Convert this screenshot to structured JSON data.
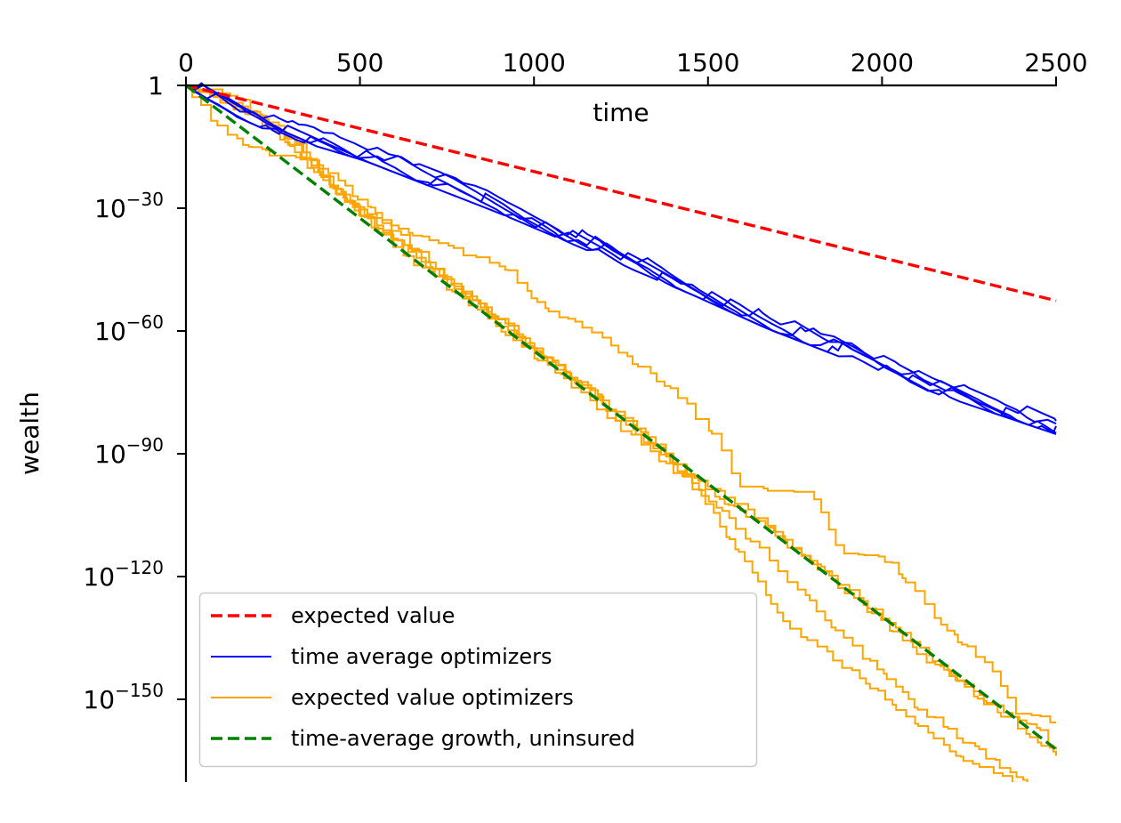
{
  "chart_data": {
    "type": "line",
    "title": "",
    "xlabel": "time",
    "ylabel": "wealth",
    "xscale": "linear",
    "yscale": "log",
    "xlim": [
      0,
      2500
    ],
    "ylim_log10": [
      -171.3,
      0
    ],
    "x_axis_position": "top",
    "grid": false,
    "legend_position": "bottom-left",
    "x_ticks": [
      {
        "value": 0,
        "label": "0"
      },
      {
        "value": 500,
        "label": "500"
      },
      {
        "value": 1000,
        "label": "1000"
      },
      {
        "value": 1500,
        "label": "1500"
      },
      {
        "value": 2000,
        "label": "2000"
      },
      {
        "value": 2500,
        "label": "2500"
      }
    ],
    "y_ticks": [
      {
        "log10": 0,
        "base": "1",
        "exp": ""
      },
      {
        "log10": -30,
        "base": "10",
        "exp": "−30"
      },
      {
        "log10": -60,
        "base": "10",
        "exp": "−60"
      },
      {
        "log10": -90,
        "base": "10",
        "exp": "−90"
      },
      {
        "log10": -120,
        "base": "10",
        "exp": "−120"
      },
      {
        "log10": -150,
        "base": "10",
        "exp": "−150"
      }
    ],
    "series": [
      {
        "name": "expected value",
        "color": "#ff0000",
        "style": "dashed",
        "kind": "line",
        "points_log10": [
          [
            0,
            0
          ],
          [
            2500,
            -52.6
          ]
        ]
      },
      {
        "name": "time average optimizers",
        "color": "#0000ff",
        "style": "solid",
        "kind": "paths",
        "n_paths": 5,
        "points_log10": [
          [
            0,
            0
          ],
          [
            255,
            -9.6
          ],
          [
            510,
            -16.1
          ],
          [
            900,
            -29
          ],
          [
            1459,
            -49.1
          ],
          [
            1670,
            -57.2
          ],
          [
            2124,
            -72.2
          ],
          [
            2500,
            -83
          ]
        ]
      },
      {
        "name": "expected value optimizers",
        "color": "#ffa500",
        "style": "solid",
        "kind": "step_paths",
        "paths_log10": [
          [
            [
              0,
              0
            ],
            [
              130,
              -2
            ],
            [
              309,
              -14
            ],
            [
              488,
              -30
            ],
            [
              700,
              -38.5
            ],
            [
              905,
              -44
            ],
            [
              1033,
              -55
            ],
            [
              1178,
              -60
            ],
            [
              1306,
              -69
            ],
            [
              1416,
              -76
            ],
            [
              1536,
              -88
            ],
            [
              1587,
              -98
            ],
            [
              1792,
              -99
            ],
            [
              1881,
              -114
            ],
            [
              2022,
              -116
            ],
            [
              2162,
              -131
            ],
            [
              2329,
              -144
            ],
            [
              2392,
              -154
            ],
            [
              2500,
              -155
            ]
          ],
          [
            [
              0,
              0
            ],
            [
              79,
              -9.6
            ],
            [
              194,
              -16
            ],
            [
              335,
              -18
            ],
            [
              520,
              -33
            ],
            [
              700,
              -44
            ],
            [
              900,
              -57
            ],
            [
              1100,
              -71
            ],
            [
              1300,
              -84
            ],
            [
              1480,
              -100
            ],
            [
              1715,
              -131
            ],
            [
              1920,
              -144
            ],
            [
              2226,
              -164
            ],
            [
              2405,
              -171
            ],
            [
              2500,
              -171.3
            ]
          ],
          [
            [
              0,
              0
            ],
            [
              150,
              -5
            ],
            [
              330,
              -16
            ],
            [
              500,
              -28
            ],
            [
              720,
              -45
            ],
            [
              950,
              -62
            ],
            [
              1180,
              -76
            ],
            [
              1400,
              -92
            ],
            [
              1600,
              -103
            ],
            [
              1820,
              -118
            ],
            [
              2050,
              -133
            ],
            [
              2280,
              -150
            ],
            [
              2440,
              -160
            ],
            [
              2500,
              -162.4
            ]
          ],
          [
            [
              0,
              0
            ],
            [
              200,
              -7
            ],
            [
              380,
              -22
            ],
            [
              560,
              -35
            ],
            [
              780,
              -50
            ],
            [
              1000,
              -64
            ],
            [
              1220,
              -80
            ],
            [
              1450,
              -96
            ],
            [
              1680,
              -109
            ],
            [
              1900,
              -124
            ],
            [
              2120,
              -140
            ],
            [
              2330,
              -152
            ],
            [
              2460,
              -158
            ],
            [
              2500,
              -164
            ]
          ],
          [
            [
              0,
              0
            ],
            [
              260,
              -10
            ],
            [
              420,
              -25
            ],
            [
              620,
              -41
            ],
            [
              840,
              -55
            ],
            [
              1060,
              -70
            ],
            [
              1280,
              -86
            ],
            [
              1500,
              -101
            ],
            [
              1700,
              -118
            ],
            [
              1900,
              -136
            ],
            [
              2100,
              -152
            ],
            [
              2300,
              -164
            ],
            [
              2420,
              -171
            ],
            [
              2500,
              -171.3
            ]
          ]
        ]
      },
      {
        "name": "time-average growth, uninsured",
        "color": "#008000",
        "style": "dashed",
        "kind": "line",
        "points_log10": [
          [
            0,
            0
          ],
          [
            2500,
            -162.2
          ]
        ]
      }
    ],
    "legend": [
      {
        "label": "expected value",
        "color": "#ff0000",
        "style": "dashed"
      },
      {
        "label": "time average optimizers",
        "color": "#0000ff",
        "style": "solid"
      },
      {
        "label": "expected value optimizers",
        "color": "#ffa500",
        "style": "solid"
      },
      {
        "label": "time-average growth, uninsured",
        "color": "#008000",
        "style": "dashed"
      }
    ]
  }
}
